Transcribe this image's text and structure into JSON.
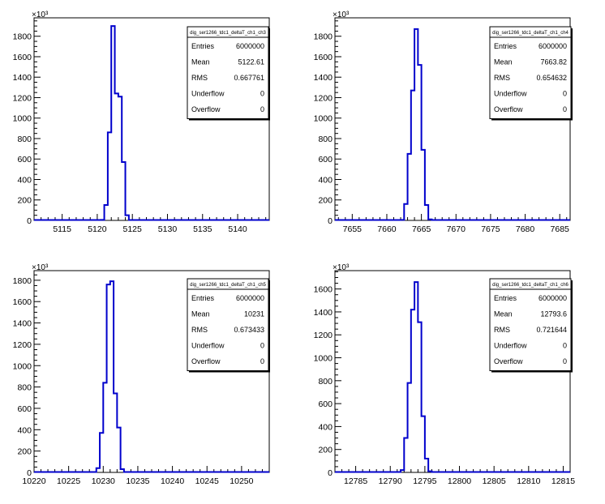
{
  "chart_data": [
    {
      "type": "histogram",
      "title": "dig_ser1266_tdc1_deltaT_ch1_ch3",
      "xlim": [
        5111,
        5144.5
      ],
      "ylim": [
        0,
        1980
      ],
      "y_multiplier_label": "×10³",
      "x_ticks": [
        5115,
        5120,
        5125,
        5130,
        5135,
        5140
      ],
      "y_ticks": [
        0,
        200,
        400,
        600,
        800,
        1000,
        1200,
        1400,
        1600,
        1800
      ],
      "bin_width": 0.5,
      "bins": [
        {
          "x": 5120.5,
          "y": 5
        },
        {
          "x": 5121.0,
          "y": 150
        },
        {
          "x": 5121.5,
          "y": 860
        },
        {
          "x": 5122.0,
          "y": 1900
        },
        {
          "x": 5122.5,
          "y": 1240
        },
        {
          "x": 5123.0,
          "y": 1210
        },
        {
          "x": 5123.5,
          "y": 570
        },
        {
          "x": 5124.0,
          "y": 50
        }
      ],
      "stats": [
        {
          "label": "Entries",
          "value": "6000000"
        },
        {
          "label": "Mean",
          "value": "5122.61"
        },
        {
          "label": "RMS",
          "value": "0.667761"
        },
        {
          "label": "Underflow",
          "value": "0"
        },
        {
          "label": "Overflow",
          "value": "0"
        }
      ]
    },
    {
      "type": "histogram",
      "title": "dig_ser1266_tdc1_deltaT_ch1_ch4",
      "xlim": [
        7652.5,
        7686.5
      ],
      "ylim": [
        0,
        1980
      ],
      "y_multiplier_label": "×10³",
      "x_ticks": [
        7655,
        7660,
        7665,
        7670,
        7675,
        7680,
        7685
      ],
      "y_ticks": [
        0,
        200,
        400,
        600,
        800,
        1000,
        1200,
        1400,
        1600,
        1800
      ],
      "bin_width": 0.5,
      "bins": [
        {
          "x": 7662.0,
          "y": 5
        },
        {
          "x": 7662.5,
          "y": 160
        },
        {
          "x": 7663.0,
          "y": 650
        },
        {
          "x": 7663.5,
          "y": 1270
        },
        {
          "x": 7664.0,
          "y": 1870
        },
        {
          "x": 7664.5,
          "y": 1520
        },
        {
          "x": 7665.0,
          "y": 690
        },
        {
          "x": 7665.5,
          "y": 150
        },
        {
          "x": 7666.0,
          "y": 10
        }
      ],
      "stats": [
        {
          "label": "Entries",
          "value": "6000000"
        },
        {
          "label": "Mean",
          "value": "7663.82"
        },
        {
          "label": "RMS",
          "value": "0.654632"
        },
        {
          "label": "Underflow",
          "value": "0"
        },
        {
          "label": "Overflow",
          "value": "0"
        }
      ]
    },
    {
      "type": "histogram",
      "title": "dig_ser1266_tdc1_deltaT_ch1_ch5",
      "xlim": [
        10220,
        10254
      ],
      "ylim": [
        0,
        1890
      ],
      "y_multiplier_label": "×10³",
      "x_ticks": [
        10220,
        10225,
        10230,
        10235,
        10240,
        10245,
        10250
      ],
      "y_ticks": [
        0,
        200,
        400,
        600,
        800,
        1000,
        1200,
        1400,
        1600,
        1800
      ],
      "bin_width": 0.5,
      "bins": [
        {
          "x": 10229.0,
          "y": 40
        },
        {
          "x": 10229.5,
          "y": 370
        },
        {
          "x": 10230.0,
          "y": 840
        },
        {
          "x": 10230.5,
          "y": 1760
        },
        {
          "x": 10231.0,
          "y": 1790
        },
        {
          "x": 10231.5,
          "y": 740
        },
        {
          "x": 10232.0,
          "y": 420
        },
        {
          "x": 10232.5,
          "y": 30
        }
      ],
      "stats": [
        {
          "label": "Entries",
          "value": "6000000"
        },
        {
          "label": "Mean",
          "value": "10231"
        },
        {
          "label": "RMS",
          "value": "0.673433"
        },
        {
          "label": "Underflow",
          "value": "0"
        },
        {
          "label": "Overflow",
          "value": "0"
        }
      ]
    },
    {
      "type": "histogram",
      "title": "dig_ser1266_tdc1_deltaT_ch1_ch6",
      "xlim": [
        12782,
        12816
      ],
      "ylim": [
        0,
        1760
      ],
      "y_multiplier_label": "×10³",
      "x_ticks": [
        12785,
        12790,
        12795,
        12800,
        12805,
        12810,
        12815
      ],
      "y_ticks": [
        0,
        200,
        400,
        600,
        800,
        1000,
        1200,
        1400,
        1600
      ],
      "bin_width": 0.5,
      "bins": [
        {
          "x": 12791.5,
          "y": 20
        },
        {
          "x": 12792.0,
          "y": 300
        },
        {
          "x": 12792.5,
          "y": 780
        },
        {
          "x": 12793.0,
          "y": 1420
        },
        {
          "x": 12793.5,
          "y": 1660
        },
        {
          "x": 12794.0,
          "y": 1310
        },
        {
          "x": 12794.5,
          "y": 490
        },
        {
          "x": 12795.0,
          "y": 120
        },
        {
          "x": 12795.5,
          "y": 10
        }
      ],
      "stats": [
        {
          "label": "Entries",
          "value": "6000000"
        },
        {
          "label": "Mean",
          "value": "12793.6"
        },
        {
          "label": "RMS",
          "value": "0.721644"
        },
        {
          "label": "Underflow",
          "value": "0"
        },
        {
          "label": "Overflow",
          "value": "0"
        }
      ]
    }
  ]
}
